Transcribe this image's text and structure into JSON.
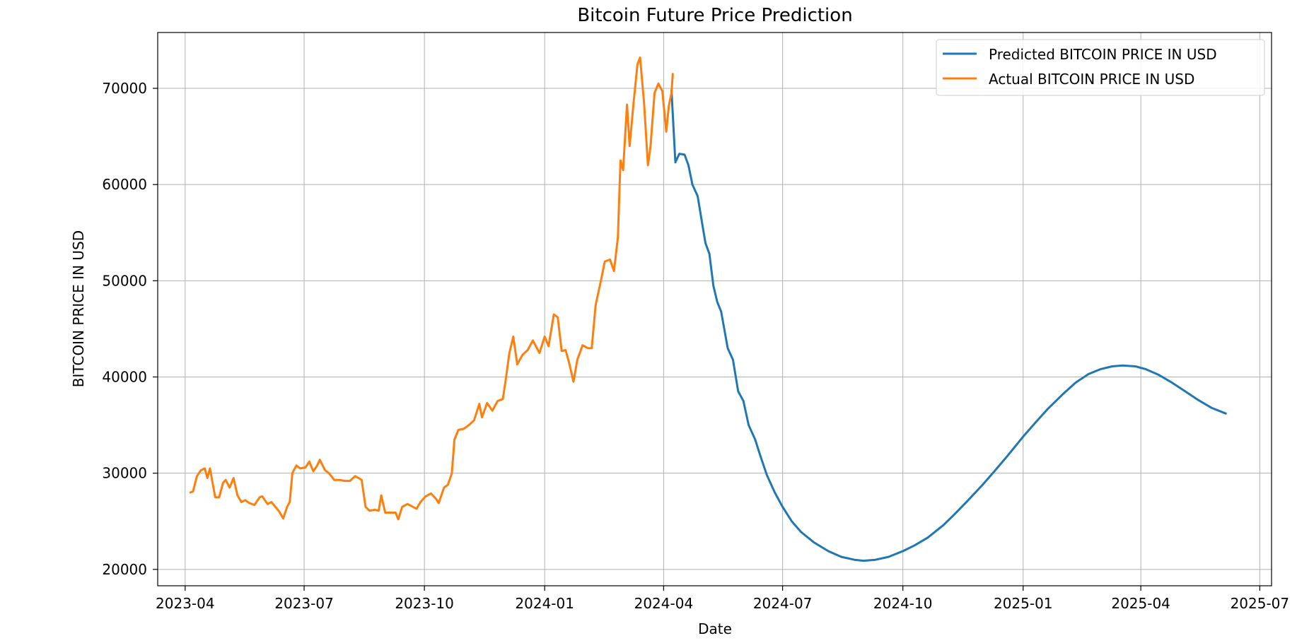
{
  "chart_data": {
    "type": "line",
    "title": "Bitcoin Future Price Prediction",
    "xlabel": "Date",
    "ylabel": "BITCOIN PRICE IN USD",
    "xlim": [
      "2023-03-11",
      "2025-07-10"
    ],
    "ylim": [
      18300,
      75800
    ],
    "x_ticks": [
      "2023-04-01",
      "2023-07-01",
      "2023-10-01",
      "2024-01-01",
      "2024-04-01",
      "2024-07-01",
      "2024-10-01",
      "2025-01-01",
      "2025-04-01",
      "2025-07-01"
    ],
    "x_tick_labels": [
      "2023-04",
      "2023-07",
      "2023-10",
      "2024-01",
      "2024-04",
      "2024-07",
      "2024-10",
      "2025-01",
      "2025-04",
      "2025-07"
    ],
    "y_ticks": [
      20000,
      30000,
      40000,
      50000,
      60000,
      70000
    ],
    "grid": true,
    "legend": "top-right",
    "series": [
      {
        "name": "Predicted BITCOIN PRICE IN USD",
        "color": "#1f77b4",
        "points": [
          [
            "2024-04-07",
            69800
          ],
          [
            "2024-04-10",
            62300
          ],
          [
            "2024-04-13",
            63200
          ],
          [
            "2024-04-17",
            63100
          ],
          [
            "2024-04-20",
            62000
          ],
          [
            "2024-04-23",
            60000
          ],
          [
            "2024-04-27",
            58800
          ],
          [
            "2024-05-01",
            55500
          ],
          [
            "2024-05-03",
            53900
          ],
          [
            "2024-05-06",
            52800
          ],
          [
            "2024-05-09",
            49500
          ],
          [
            "2024-05-12",
            47800
          ],
          [
            "2024-05-15",
            46800
          ],
          [
            "2024-05-20",
            43000
          ],
          [
            "2024-05-24",
            41800
          ],
          [
            "2024-05-28",
            38500
          ],
          [
            "2024-06-01",
            37500
          ],
          [
            "2024-06-05",
            35000
          ],
          [
            "2024-06-10",
            33500
          ],
          [
            "2024-06-14",
            31800
          ],
          [
            "2024-06-19",
            29800
          ],
          [
            "2024-06-25",
            28000
          ],
          [
            "2024-07-01",
            26500
          ],
          [
            "2024-07-08",
            25000
          ],
          [
            "2024-07-15",
            23900
          ],
          [
            "2024-07-25",
            22800
          ],
          [
            "2024-08-05",
            21900
          ],
          [
            "2024-08-15",
            21300
          ],
          [
            "2024-08-25",
            21000
          ],
          [
            "2024-09-01",
            20900
          ],
          [
            "2024-09-10",
            21000
          ],
          [
            "2024-09-20",
            21300
          ],
          [
            "2024-10-01",
            21900
          ],
          [
            "2024-10-10",
            22500
          ],
          [
            "2024-10-20",
            23300
          ],
          [
            "2024-11-01",
            24600
          ],
          [
            "2024-11-10",
            25800
          ],
          [
            "2024-11-20",
            27200
          ],
          [
            "2024-12-01",
            28800
          ],
          [
            "2024-12-10",
            30200
          ],
          [
            "2024-12-20",
            31800
          ],
          [
            "2025-01-01",
            33800
          ],
          [
            "2025-01-10",
            35200
          ],
          [
            "2025-01-20",
            36700
          ],
          [
            "2025-02-01",
            38300
          ],
          [
            "2025-02-10",
            39400
          ],
          [
            "2025-02-20",
            40300
          ],
          [
            "2025-03-01",
            40800
          ],
          [
            "2025-03-10",
            41100
          ],
          [
            "2025-03-18",
            41200
          ],
          [
            "2025-03-28",
            41100
          ],
          [
            "2025-04-05",
            40800
          ],
          [
            "2025-04-15",
            40200
          ],
          [
            "2025-04-25",
            39400
          ],
          [
            "2025-05-05",
            38500
          ],
          [
            "2025-05-15",
            37600
          ],
          [
            "2025-05-25",
            36800
          ],
          [
            "2025-06-05",
            36200
          ]
        ]
      },
      {
        "name": "Actual BITCOIN PRICE IN USD",
        "color": "#ff7f0e",
        "points": [
          [
            "2023-04-05",
            28000
          ],
          [
            "2023-04-07",
            28100
          ],
          [
            "2023-04-10",
            29700
          ],
          [
            "2023-04-13",
            30300
          ],
          [
            "2023-04-16",
            30500
          ],
          [
            "2023-04-18",
            29500
          ],
          [
            "2023-04-20",
            30500
          ],
          [
            "2023-04-24",
            27500
          ],
          [
            "2023-04-27",
            27500
          ],
          [
            "2023-04-30",
            29000
          ],
          [
            "2023-05-02",
            29300
          ],
          [
            "2023-05-05",
            28500
          ],
          [
            "2023-05-08",
            29500
          ],
          [
            "2023-05-11",
            27700
          ],
          [
            "2023-05-14",
            27000
          ],
          [
            "2023-05-17",
            27200
          ],
          [
            "2023-05-20",
            26900
          ],
          [
            "2023-05-24",
            26700
          ],
          [
            "2023-05-28",
            27500
          ],
          [
            "2023-05-30",
            27600
          ],
          [
            "2023-06-03",
            26800
          ],
          [
            "2023-06-06",
            27000
          ],
          [
            "2023-06-09",
            26500
          ],
          [
            "2023-06-12",
            26000
          ],
          [
            "2023-06-15",
            25300
          ],
          [
            "2023-06-18",
            26500
          ],
          [
            "2023-06-20",
            27000
          ],
          [
            "2023-06-22",
            30000
          ],
          [
            "2023-06-25",
            30800
          ],
          [
            "2023-06-28",
            30500
          ],
          [
            "2023-07-02",
            30600
          ],
          [
            "2023-07-05",
            31200
          ],
          [
            "2023-07-08",
            30200
          ],
          [
            "2023-07-11",
            30800
          ],
          [
            "2023-07-13",
            31400
          ],
          [
            "2023-07-17",
            30300
          ],
          [
            "2023-07-20",
            30000
          ],
          [
            "2023-07-24",
            29300
          ],
          [
            "2023-07-28",
            29300
          ],
          [
            "2023-08-01",
            29200
          ],
          [
            "2023-08-05",
            29200
          ],
          [
            "2023-08-09",
            29700
          ],
          [
            "2023-08-14",
            29300
          ],
          [
            "2023-08-17",
            26500
          ],
          [
            "2023-08-20",
            26100
          ],
          [
            "2023-08-24",
            26200
          ],
          [
            "2023-08-27",
            26100
          ],
          [
            "2023-08-29",
            27700
          ],
          [
            "2023-09-01",
            25900
          ],
          [
            "2023-09-05",
            25900
          ],
          [
            "2023-09-09",
            25900
          ],
          [
            "2023-09-11",
            25200
          ],
          [
            "2023-09-14",
            26500
          ],
          [
            "2023-09-18",
            26800
          ],
          [
            "2023-09-21",
            26600
          ],
          [
            "2023-09-25",
            26300
          ],
          [
            "2023-09-28",
            27000
          ],
          [
            "2023-10-02",
            27600
          ],
          [
            "2023-10-06",
            27900
          ],
          [
            "2023-10-10",
            27300
          ],
          [
            "2023-10-12",
            26900
          ],
          [
            "2023-10-16",
            28500
          ],
          [
            "2023-10-19",
            28800
          ],
          [
            "2023-10-22",
            30000
          ],
          [
            "2023-10-24",
            33500
          ],
          [
            "2023-10-27",
            34500
          ],
          [
            "2023-10-31",
            34600
          ],
          [
            "2023-11-04",
            35000
          ],
          [
            "2023-11-08",
            35500
          ],
          [
            "2023-11-12",
            37200
          ],
          [
            "2023-11-14",
            35800
          ],
          [
            "2023-11-18",
            37300
          ],
          [
            "2023-11-22",
            36500
          ],
          [
            "2023-11-26",
            37500
          ],
          [
            "2023-11-30",
            37700
          ],
          [
            "2023-12-02",
            39500
          ],
          [
            "2023-12-05",
            42500
          ],
          [
            "2023-12-08",
            44200
          ],
          [
            "2023-12-11",
            41300
          ],
          [
            "2023-12-15",
            42300
          ],
          [
            "2023-12-19",
            42800
          ],
          [
            "2023-12-23",
            43800
          ],
          [
            "2023-12-28",
            42500
          ],
          [
            "2024-01-01",
            44200
          ],
          [
            "2024-01-04",
            43200
          ],
          [
            "2024-01-08",
            46500
          ],
          [
            "2024-01-11",
            46200
          ],
          [
            "2024-01-14",
            42700
          ],
          [
            "2024-01-17",
            42800
          ],
          [
            "2024-01-20",
            41300
          ],
          [
            "2024-01-23",
            39500
          ],
          [
            "2024-01-26",
            41800
          ],
          [
            "2024-01-30",
            43300
          ],
          [
            "2024-02-03",
            43000
          ],
          [
            "2024-02-06",
            43000
          ],
          [
            "2024-02-09",
            47500
          ],
          [
            "2024-02-13",
            50000
          ],
          [
            "2024-02-16",
            52000
          ],
          [
            "2024-02-20",
            52200
          ],
          [
            "2024-02-23",
            51000
          ],
          [
            "2024-02-26",
            54500
          ],
          [
            "2024-02-28",
            62500
          ],
          [
            "2024-03-01",
            61500
          ],
          [
            "2024-03-04",
            68300
          ],
          [
            "2024-03-06",
            64000
          ],
          [
            "2024-03-09",
            68500
          ],
          [
            "2024-03-12",
            72500
          ],
          [
            "2024-03-14",
            73200
          ],
          [
            "2024-03-17",
            68500
          ],
          [
            "2024-03-20",
            62000
          ],
          [
            "2024-03-22",
            64000
          ],
          [
            "2024-03-25",
            69500
          ],
          [
            "2024-03-28",
            70500
          ],
          [
            "2024-03-31",
            69700
          ],
          [
            "2024-04-03",
            65500
          ],
          [
            "2024-04-05",
            68200
          ],
          [
            "2024-04-07",
            69500
          ],
          [
            "2024-04-08",
            71500
          ]
        ]
      }
    ]
  }
}
